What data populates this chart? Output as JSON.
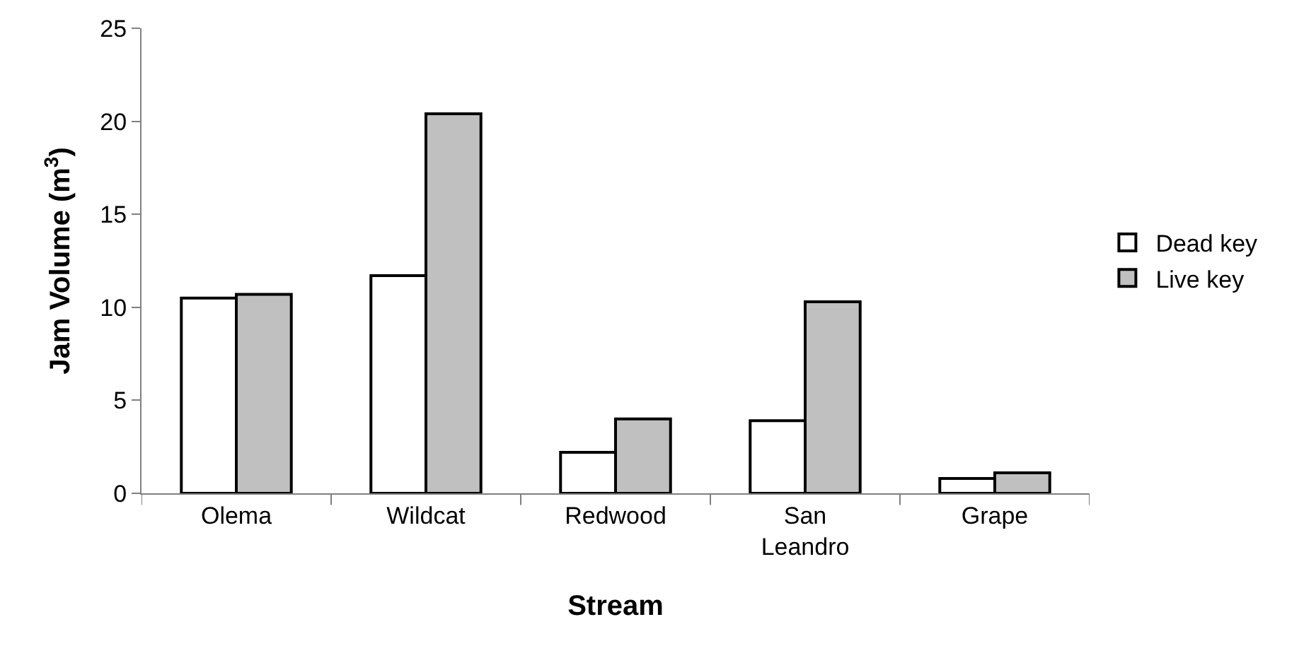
{
  "chart_data": {
    "type": "bar",
    "xlabel": "Stream",
    "ylabel": "Jam Volume (m$^{3}$)",
    "categories": [
      "Olema",
      "Wildcat",
      "Redwood",
      "San Leandro",
      "Grape"
    ],
    "series": [
      {
        "name": "Dead key",
        "color": "#ffffff",
        "values": [
          10.5,
          11.7,
          2.2,
          3.9,
          0.8
        ]
      },
      {
        "name": "Live key",
        "color": "#c0c0c0",
        "values": [
          10.7,
          20.4,
          4.0,
          10.3,
          1.1
        ]
      }
    ],
    "ylim": [
      0,
      25
    ],
    "yticks": [
      0,
      5,
      10,
      15,
      20,
      25
    ],
    "legend": "right"
  }
}
